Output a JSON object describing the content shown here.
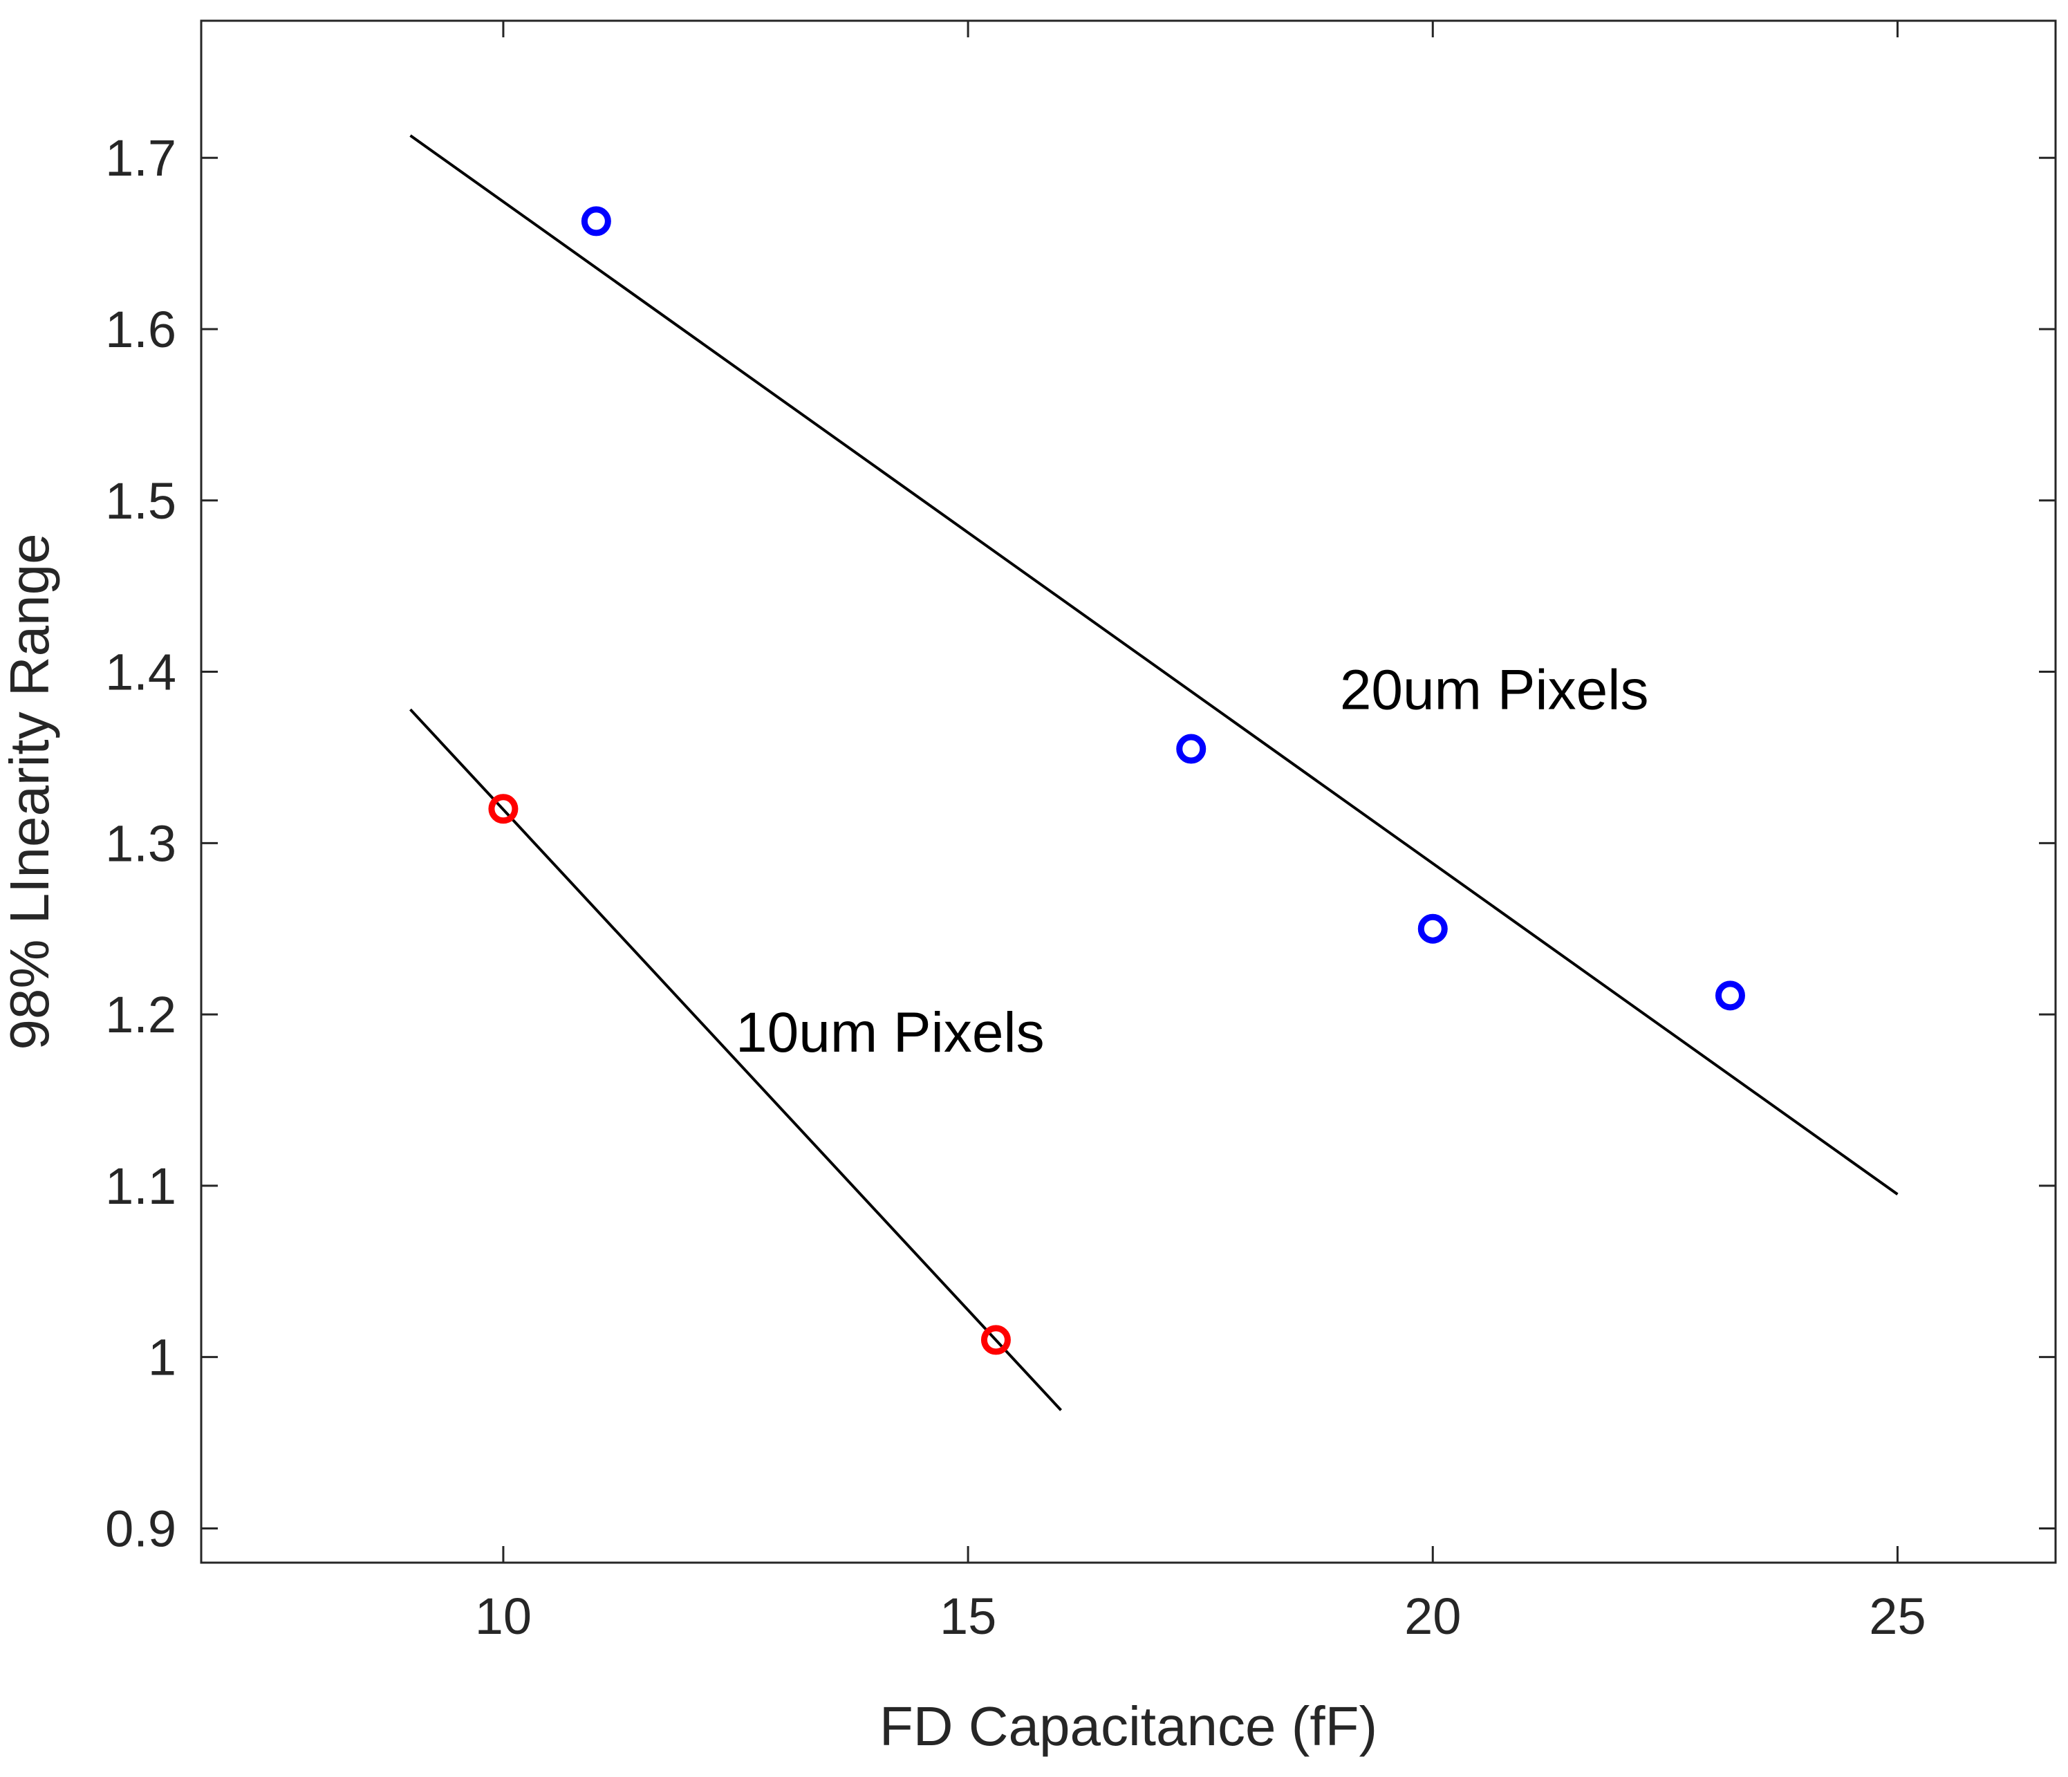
{
  "chart_data": {
    "type": "scatter",
    "title": "",
    "xlabel": "FD Capacitance (fF)",
    "ylabel": "98% LInearity Range",
    "xlim": [
      6.75,
      26.7
    ],
    "ylim": [
      0.88,
      1.78
    ],
    "xticks": [
      10,
      15,
      20,
      25
    ],
    "yticks": [
      0.9,
      1,
      1.1,
      1.2,
      1.3,
      1.4,
      1.5,
      1.6,
      1.7
    ],
    "xtick_labels": [
      "10",
      "15",
      "20",
      "25"
    ],
    "ytick_labels": [
      "0.9",
      "1",
      "1.1",
      "1.2",
      "1.3",
      "1.4",
      "1.5",
      "1.6",
      "1.7"
    ],
    "grid": false,
    "series": [
      {
        "name": "20um Pixels",
        "marker": "circle-open",
        "color": "#0000ff",
        "x": [
          11.0,
          17.4,
          20.0,
          23.2
        ],
        "y": [
          1.663,
          1.355,
          1.25,
          1.211
        ]
      },
      {
        "name": "10um Pixels",
        "marker": "circle-open",
        "color": "#ff0000",
        "x": [
          10.0,
          15.3
        ],
        "y": [
          1.32,
          1.01
        ]
      }
    ],
    "fit_lines": [
      {
        "name": "20um-fit",
        "color": "#000000",
        "x": [
          9.0,
          25.0
        ],
        "y": [
          1.713,
          1.095
        ]
      },
      {
        "name": "10um-fit",
        "color": "#000000",
        "x": [
          9.0,
          16.0
        ],
        "y": [
          1.378,
          0.969
        ]
      }
    ],
    "annotations": [
      {
        "text": "20um Pixels",
        "x": 19.0,
        "y": 1.39
      },
      {
        "text": "10um Pixels",
        "x": 12.5,
        "y": 1.19
      }
    ]
  }
}
